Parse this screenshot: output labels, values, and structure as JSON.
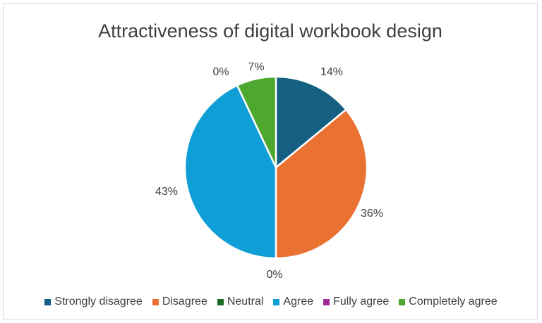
{
  "chart_data": {
    "type": "pie",
    "title": "Attractiveness of digital workbook design",
    "categories": [
      "Strongly disagree",
      "Disagree",
      "Neutral",
      "Agree",
      "Fully agree",
      "Completely agree"
    ],
    "values": [
      14,
      36,
      0,
      43,
      0,
      7
    ],
    "labels": [
      "14%",
      "36%",
      "0%",
      "43%",
      "0%",
      "7%"
    ],
    "colors": [
      "#156082",
      "#E97132",
      "#196B24",
      "#0F9ED5",
      "#A02B93",
      "#4EA72E"
    ],
    "legend_position": "bottom"
  }
}
